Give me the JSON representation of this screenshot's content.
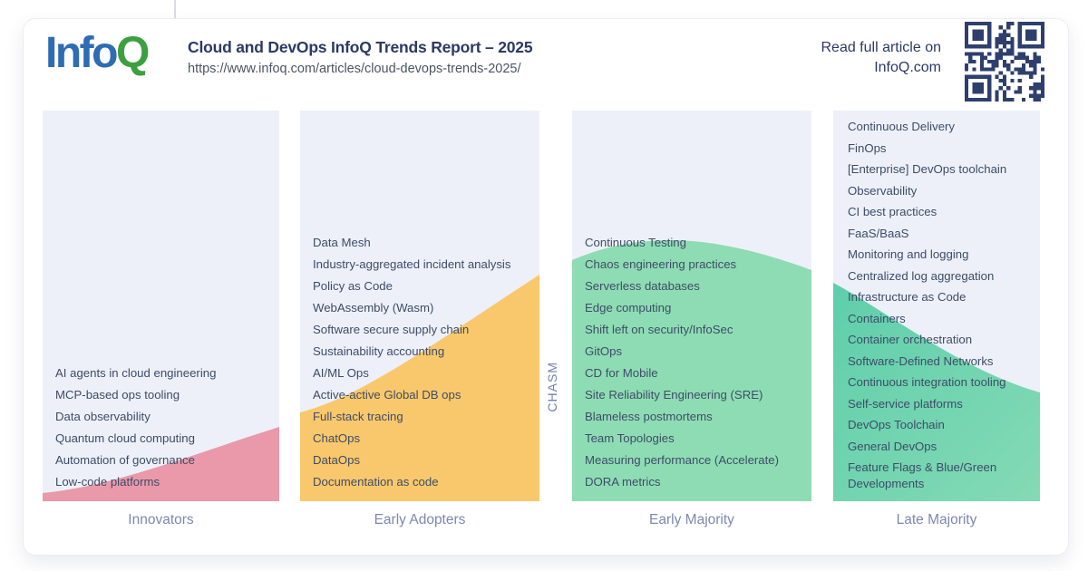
{
  "header": {
    "logo": {
      "text_info": "Info",
      "text_q": "Q",
      "info_color": "#2e6cb4",
      "q_color": "#3ba03f"
    },
    "title": "Cloud and DevOps InfoQ Trends Report – 2025",
    "url": "https://www.infoq.com/articles/cloud-devops-trends-2025/",
    "read_full_line1": "Read full article on",
    "read_full_line2": "InfoQ.com"
  },
  "chasm_label": "CHASM",
  "columns": [
    {
      "id": "innovators",
      "label": "Innovators",
      "wave_color": "#e999aa",
      "items": [
        "AI agents in cloud engineering",
        "MCP-based ops tooling",
        "Data observability",
        "Quantum cloud computing",
        "Automation of governance",
        "Low-code platforms"
      ]
    },
    {
      "id": "early-adopters",
      "label": "Early Adopters",
      "wave_color": "#f9c86c",
      "items": [
        "Data Mesh",
        "Industry-aggregated incident analysis",
        "Policy as Code",
        "WebAssembly (Wasm)",
        "Software secure supply chain",
        "Sustainability accounting",
        "AI/ML Ops",
        "Active-active Global DB ops",
        "Full-stack tracing",
        "ChatOps",
        "DataOps",
        "Documentation as code"
      ]
    },
    {
      "id": "early-majority",
      "label": "Early Majority",
      "wave_color": "#8edcb4",
      "items": [
        "Continuous Testing",
        "Chaos engineering practices",
        "Serverless databases",
        "Edge computing",
        "Shift left on security/InfoSec",
        "GitOps",
        "CD for Mobile",
        "Site Reliability Engineering (SRE)",
        "Blameless postmortems",
        "Team Topologies",
        "Measuring performance (Accelerate)",
        "DORA metrics"
      ]
    },
    {
      "id": "late-majority",
      "label": "Late Majority",
      "wave_color_start": "#5fceab",
      "wave_color_end": "#84dab5",
      "items": [
        "Continuous Delivery",
        "FinOps",
        "[Enterprise] DevOps toolchain",
        "Observability",
        "CI best practices",
        "FaaS/BaaS",
        "Monitoring and logging",
        "Centralized log aggregation",
        "Infrastructure as Code",
        "Containers",
        "Container orchestration",
        "Software-Defined Networks",
        "Continuous integration tooling",
        "Self-service platforms",
        "DevOps Toolchain",
        "General DevOps",
        "Feature Flags & Blue/Green Developments"
      ]
    }
  ],
  "colors": {
    "column_bg": "#edf0f8",
    "item_text": "#3e4c68",
    "label_text": "#7e88b0",
    "title_text": "#2b3a64",
    "url_text": "#4b5563",
    "chasm_text": "#6f7fae",
    "qr": "#2e3f6e"
  }
}
